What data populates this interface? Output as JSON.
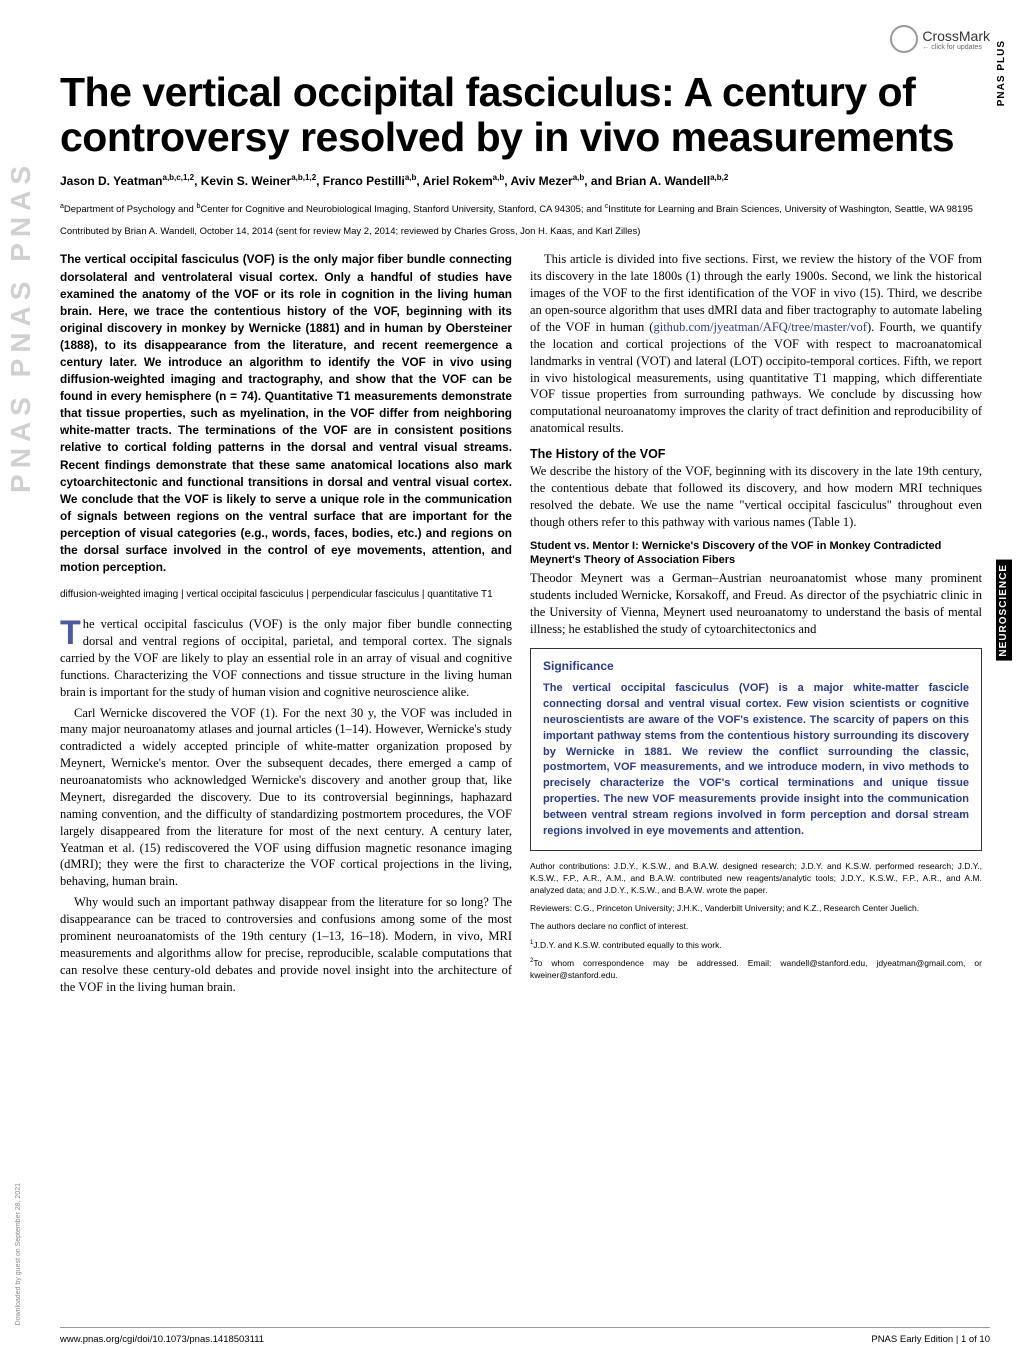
{
  "logos": {
    "pnas_vertical": "PNAS   PNAS   PNAS",
    "crossmark": "CrossMark",
    "crossmark_sub": "← click for updates",
    "download_tag": "Downloaded by guest on September 28, 2021"
  },
  "side_labels": {
    "plus": "PNAS PLUS",
    "neuro": "NEUROSCIENCE"
  },
  "title": "The vertical occipital fasciculus: A century of controversy resolved by in vivo measurements",
  "authors_html": "Jason D. Yeatman^{a,b,c,1,2}, Kevin S. Weiner^{a,b,1,2}, Franco Pestilli^{a,b}, Ariel Rokem^{a,b}, Aviv Mezer^{a,b}, and Brian A. Wandell^{a,b,2}",
  "authors": {
    "list": "Jason D. Yeatman",
    "a1s": "a,b,c,1,2",
    "a2": ", Kevin S. Weiner",
    "a2s": "a,b,1,2",
    "a3": ", Franco Pestilli",
    "a3s": "a,b",
    "a4": ", Ariel Rokem",
    "a4s": "a,b",
    "a5": ", Aviv Mezer",
    "a5s": "a,b",
    "a6": ", and Brian A. Wandell",
    "a6s": "a,b,2"
  },
  "affiliations": {
    "text": "Department of Psychology and ",
    "sup_a": "a",
    "text2": "Center for Cognitive and Neurobiological Imaging, Stanford University, Stanford, CA 94305; and ",
    "sup_b": "b",
    "text3": "Institute for Learning and Brain Sciences, University of Washington, Seattle, WA 98195",
    "sup_c": "c"
  },
  "contributed": "Contributed by Brian A. Wandell, October 14, 2014 (sent for review May 2, 2014; reviewed by Charles Gross, Jon H. Kaas, and Karl Zilles)",
  "abstract": "The vertical occipital fasciculus (VOF) is the only major fiber bundle connecting dorsolateral and ventrolateral visual cortex. Only a handful of studies have examined the anatomy of the VOF or its role in cognition in the living human brain. Here, we trace the contentious history of the VOF, beginning with its original discovery in monkey by Wernicke (1881) and in human by Obersteiner (1888), to its disappearance from the literature, and recent reemergence a century later. We introduce an algorithm to identify the VOF in vivo using diffusion-weighted imaging and tractography, and show that the VOF can be found in every hemisphere (n = 74). Quantitative T1 measurements demonstrate that tissue properties, such as myelination, in the VOF differ from neighboring white-matter tracts. The terminations of the VOF are in consistent positions relative to cortical folding patterns in the dorsal and ventral visual streams. Recent findings demonstrate that these same anatomical locations also mark cytoarchitectonic and functional transitions in dorsal and ventral visual cortex. We conclude that the VOF is likely to serve a unique role in the communication of signals between regions on the ventral surface that are important for the perception of visual categories (e.g., words, faces, bodies, etc.) and regions on the dorsal surface involved in the control of eye movements, attention, and motion perception.",
  "keywords": "diffusion-weighted imaging | vertical occipital fasciculus | perpendicular fasciculus | quantitative T1",
  "col1": {
    "p1_first": "T",
    "p1": "he vertical occipital fasciculus (VOF) is the only major fiber bundle connecting dorsal and ventral regions of occipital, parietal, and temporal cortex. The signals carried by the VOF are likely to play an essential role in an array of visual and cognitive functions. Characterizing the VOF connections and tissue structure in the living human brain is important for the study of human vision and cognitive neuroscience alike.",
    "p2": "Carl Wernicke discovered the VOF (1). For the next 30 y, the VOF was included in many major neuroanatomy atlases and journal articles (1–14). However, Wernicke's study contradicted a widely accepted principle of white-matter organization proposed by Meynert, Wernicke's mentor. Over the subsequent decades, there emerged a camp of neuroanatomists who acknowledged Wernicke's discovery and another group that, like Meynert, disregarded the discovery. Due to its controversial beginnings, haphazard naming convention, and the difficulty of standardizing postmortem procedures, the VOF largely disappeared from the literature for most of the next century. A century later, Yeatman et al. (15) rediscovered the VOF using diffusion magnetic resonance imaging (dMRI); they were the first to characterize the VOF cortical projections in the living, behaving, human brain.",
    "p3": "Why would such an important pathway disappear from the literature for so long? The disappearance can be traced to controversies and confusions among some of the most prominent neuroanatomists of the 19th century (1–13, 16–18). Modern, in vivo, MRI measurements and algorithms allow for precise, reproducible, scalable computations that can resolve these century-old debates and provide novel insight into the architecture of the VOF in the living human brain."
  },
  "col2": {
    "intro": "This article is divided into five sections. First, we review the history of the VOF from its discovery in the late 1800s (1) through the early 1900s. Second, we link the historical images of the VOF to the first identification of the VOF in vivo (15). Third, we describe an open-source algorithm that uses dMRI data and fiber tractography to automate labeling of the VOF in human (",
    "link": "github.com/jyeatman/AFQ/tree/master/vof",
    "intro2": "). Fourth, we quantify the location and cortical projections of the VOF with respect to macroanatomical landmarks in ventral (VOT) and lateral (LOT) occipito-temporal cortices. Fifth, we report in vivo histological measurements, using quantitative T1 mapping, which differentiate VOF tissue properties from surrounding pathways. We conclude by discussing how computational neuroanatomy improves the clarity of tract definition and reproducibility of anatomical results.",
    "sec1_head": "The History of the VOF",
    "sec1_body": "We describe the history of the VOF, beginning with its discovery in the late 19th century, the contentious debate that followed its discovery, and how modern MRI techniques resolved the debate. We use the name \"vertical occipital fasciculus\" throughout even though others refer to this pathway with various names (Table 1).",
    "sub1_head": "Student vs. Mentor I: Wernicke's Discovery of the VOF in Monkey Contradicted Meynert's Theory of Association Fibers",
    "sub1_body": "Theodor Meynert was a German–Austrian neuroanatomist whose many prominent students included Wernicke, Korsakoff, and Freud. As director of the psychiatric clinic in the University of Vienna, Meynert used neuroanatomy to understand the basis of mental illness; he established the study of cytoarchitectonics and"
  },
  "significance": {
    "head": "Significance",
    "body": "The vertical occipital fasciculus (VOF) is a major white-matter fascicle connecting dorsal and ventral visual cortex. Few vision scientists or cognitive neuroscientists are aware of the VOF's existence. The scarcity of papers on this important pathway stems from the contentious history surrounding its discovery by Wernicke in 1881. We review the conflict surrounding the classic, postmortem, VOF measurements, and we introduce modern, in vivo methods to precisely characterize the VOF's cortical terminations and unique tissue properties. The new VOF measurements provide insight into the communication between ventral stream regions involved in form perception and dorsal stream regions involved in eye movements and attention."
  },
  "fine": {
    "contributions": "Author contributions: J.D.Y., K.S.W., and B.A.W. designed research; J.D.Y. and K.S.W. performed research; J.D.Y., K.S.W., F.P., A.R., A.M., and B.A.W. contributed new reagents/analytic tools; J.D.Y., K.S.W., F.P., A.R., and A.M. analyzed data; and J.D.Y., K.S.W., and B.A.W. wrote the paper.",
    "reviewers": "Reviewers: C.G., Princeton University; J.H.K., Vanderbilt University; and K.Z., Research Center Juelich.",
    "conflict": "The authors declare no conflict of interest.",
    "equal": "J.D.Y. and K.S.W. contributed equally to this work.",
    "equal_sup": "1",
    "corr": "To whom correspondence may be addressed. Email: wandell@stanford.edu, jdyeatman@gmail.com, or kweiner@stanford.edu.",
    "corr_sup": "2"
  },
  "footer": {
    "doi": "www.pnas.org/cgi/doi/10.1073/pnas.1418503111",
    "pages": "PNAS Early Edition | 1 of 10"
  },
  "colors": {
    "accent": "#2a3a8a",
    "dropcap": "#4a5a9a",
    "logo_gray": "#d0d0d0"
  }
}
